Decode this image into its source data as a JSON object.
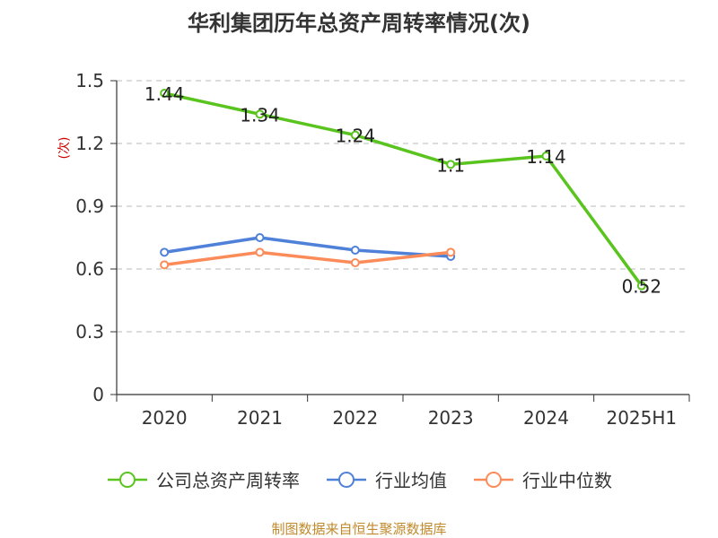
{
  "title": "华利集团历年总资产周转率情况(次)",
  "source": "制图数据来自恒生聚源数据库",
  "chart_data": {
    "type": "line",
    "title": "华利集团历年总资产周转率情况(次)",
    "ylabel": "(次)",
    "xlabel": "",
    "categories": [
      "2020",
      "2021",
      "2022",
      "2023",
      "2024",
      "2025H1"
    ],
    "ylim": [
      0,
      1.5
    ],
    "yticks": [
      "0",
      "0.3",
      "0.6",
      "0.9",
      "1.2",
      "1.5"
    ],
    "ytick_values": [
      0,
      0.3,
      0.6,
      0.9,
      1.2,
      1.5
    ],
    "grid": "horizontal-dashed",
    "legend_position": "bottom",
    "series": [
      {
        "name": "公司总资产周转率",
        "color": "#5ac41f",
        "values": [
          1.44,
          1.34,
          1.24,
          1.1,
          1.14,
          0.52
        ],
        "labels": [
          "1.44",
          "1.34",
          "1.24",
          "1.1",
          "1.14",
          "0.52"
        ]
      },
      {
        "name": "行业均值",
        "color": "#4f81d9",
        "values": [
          0.68,
          0.75,
          0.69,
          0.66,
          null,
          null
        ]
      },
      {
        "name": "行业中位数",
        "color": "#fb8c5a",
        "values": [
          0.62,
          0.68,
          0.63,
          0.68,
          null,
          null
        ]
      }
    ]
  }
}
